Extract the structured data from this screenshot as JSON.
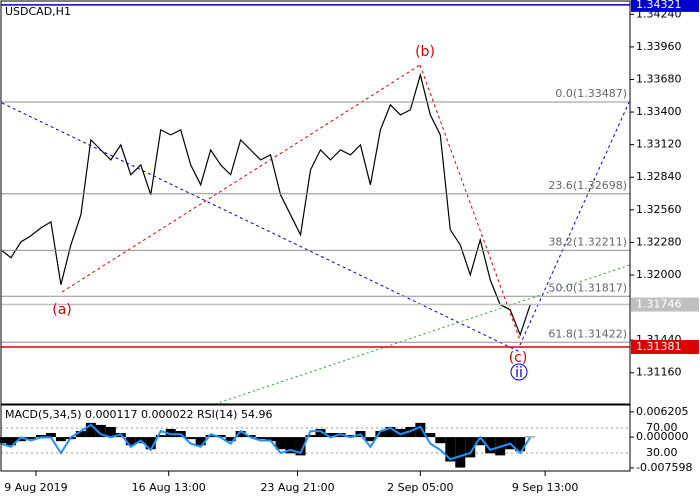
{
  "chart_data": [
    {
      "type": "line",
      "title": "USDCAD,H1",
      "x": [
        0,
        10,
        20,
        30,
        40,
        50,
        60,
        70,
        80,
        90,
        100,
        110,
        120,
        130,
        140,
        150,
        160,
        170,
        180,
        190,
        200,
        210,
        220,
        230,
        240,
        250,
        260,
        270,
        280,
        290,
        300,
        310,
        320,
        330,
        340,
        350,
        360,
        370,
        380,
        390,
        400,
        410,
        420,
        430,
        440,
        450,
        460,
        470,
        480,
        490,
        500,
        510,
        520,
        530
      ],
      "series": [
        {
          "color": "#000000",
          "values": [
            1.32216,
            1.32148,
            1.32285,
            1.32337,
            1.32405,
            1.32457,
            1.31916,
            1.32259,
            1.32517,
            1.33161,
            1.33075,
            1.32989,
            1.33118,
            1.32861,
            1.32946,
            1.32689,
            1.33247,
            1.33204,
            1.33247,
            1.32946,
            1.32775,
            1.33075,
            1.32946,
            1.32861,
            1.33161,
            1.33075,
            1.32989,
            1.33032,
            1.32689,
            1.32517,
            1.32345,
            1.32903,
            1.33075,
            1.32989,
            1.33075,
            1.33032,
            1.33118,
            1.32775,
            1.33247,
            1.33462,
            1.33376,
            1.33419,
            1.33719,
            1.33376,
            1.33204,
            1.32388,
            1.32259,
            1.32001,
            1.32302,
            1.31959,
            1.31744,
            1.31701,
            1.31486,
            1.31744
          ]
        }
      ],
      "xlim": [
        0,
        630
      ],
      "ylim": [
        1.309,
        1.3432
      ],
      "yticks": [
        {
          "value": 1.3424,
          "label": "1.34240"
        },
        {
          "value": 1.3396,
          "label": "1.33960"
        },
        {
          "value": 1.3368,
          "label": "1.33680"
        },
        {
          "value": 1.334,
          "label": "1.33400"
        },
        {
          "value": 1.3312,
          "label": "1.33120"
        },
        {
          "value": 1.3284,
          "label": "1.32840"
        },
        {
          "value": 1.3256,
          "label": "1.32560"
        },
        {
          "value": 1.3228,
          "label": "1.32280"
        },
        {
          "value": 1.32,
          "label": "1.32000"
        },
        {
          "value": 1.3144,
          "label": "1.31440"
        },
        {
          "value": 1.3116,
          "label": "1.31160"
        }
      ],
      "levels": [
        {
          "value": 1.33487,
          "label": "0.0(1.33487)",
          "color": "#909090"
        },
        {
          "value": 1.32698,
          "label": "23.6(1.32698)",
          "color": "#909090"
        },
        {
          "value": 1.32211,
          "label": "38.2(1.32211)",
          "color": "#909090"
        },
        {
          "value": 1.31817,
          "label": "50.0(1.31817)",
          "color": "#909090"
        },
        {
          "value": 1.31422,
          "label": "61.8(1.31422)",
          "color": "#909090"
        },
        {
          "value": 1.34321,
          "color": "#0000cc",
          "box": true
        },
        {
          "value": 1.31381,
          "color": "#dd0000",
          "box": true
        },
        {
          "value": 1.31746,
          "color": "#c0c0c0",
          "box": true
        }
      ],
      "annotations": [
        {
          "text": "(a)",
          "color": "#dd0000"
        },
        {
          "text": "(b)",
          "color": "#dd0000"
        },
        {
          "text": "(c)",
          "color": "#dd0000"
        },
        {
          "text": "ii",
          "color": "#0000cc"
        }
      ]
    },
    {
      "type": "bar",
      "title": "MACD(5,34,5) 0.000117 0.000022 RSI(14) 54.96",
      "x": [
        0,
        10,
        20,
        30,
        40,
        50,
        60,
        70,
        80,
        90,
        100,
        110,
        120,
        130,
        140,
        150,
        160,
        170,
        180,
        190,
        200,
        210,
        220,
        230,
        240,
        250,
        260,
        270,
        280,
        290,
        300,
        310,
        320,
        330,
        340,
        350,
        360,
        370,
        380,
        390,
        400,
        410,
        420,
        430,
        440,
        450,
        460,
        470,
        480,
        490,
        500,
        510,
        520,
        530
      ],
      "series": [
        {
          "color": "#000000",
          "values": [
            -0.0015,
            -0.002,
            -0.001,
            -0.0005,
            0.0005,
            0.001,
            -0.001,
            -0.0005,
            0.0015,
            0.0035,
            0.003,
            0.0025,
            0.001,
            -0.002,
            -0.0015,
            -0.003,
            0.0005,
            0.002,
            0.0015,
            -0.0005,
            -0.002,
            0.0005,
            0.0005,
            -0.001,
            0.0015,
            0.0005,
            -0.0005,
            -0.001,
            -0.003,
            -0.004,
            -0.0045,
            0.0005,
            0.002,
            0.001,
            0.001,
            0.0005,
            0.0015,
            -0.001,
            0.0015,
            0.0025,
            0.002,
            0.0025,
            0.0035,
            0.001,
            -0.0015,
            -0.006,
            -0.0075,
            -0.005,
            -0.002,
            -0.004,
            -0.0045,
            -0.003,
            -0.0035,
            0.0001
          ]
        },
        {
          "color": "#1e90ff",
          "axis": "y2",
          "values": [
            45,
            40,
            55,
            50,
            55,
            55,
            30,
            55,
            65,
            75,
            60,
            55,
            60,
            40,
            50,
            35,
            65,
            60,
            60,
            45,
            40,
            60,
            55,
            45,
            65,
            55,
            50,
            50,
            30,
            35,
            30,
            65,
            65,
            55,
            60,
            55,
            60,
            40,
            65,
            70,
            60,
            65,
            72,
            45,
            35,
            20,
            25,
            30,
            55,
            35,
            40,
            45,
            30,
            55
          ]
        }
      ],
      "xlim": [
        0,
        630
      ],
      "ylim": [
        -0.0081,
        0.0079
      ],
      "y2lim": [
        2.8,
        106.8
      ],
      "yticks": [
        0.006205,
        {
          "value": 0,
          "label": "0.000000"
        },
        -0.007598
      ],
      "y2ticks": [
        {
          "value": 70,
          "label": "70.00"
        },
        {
          "value": 30,
          "label": "30.00"
        }
      ],
      "xticks": [
        {
          "value": 35,
          "label": "9 Aug 2019"
        },
        {
          "value": 168,
          "label": "16 Aug 13:00"
        },
        {
          "value": 297,
          "label": "23 Aug 21:00"
        },
        {
          "value": 420,
          "label": "2 Sep 05:00"
        },
        {
          "value": 545,
          "label": "9 Sep 13:00"
        }
      ]
    }
  ]
}
